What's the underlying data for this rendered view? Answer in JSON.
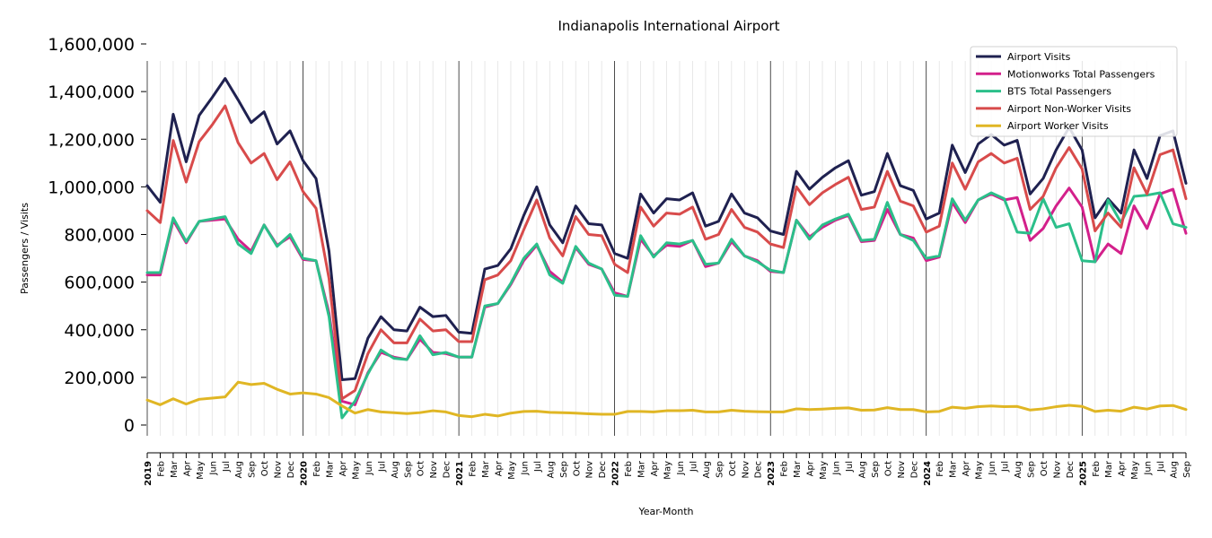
{
  "chart_data": {
    "type": "line",
    "title": "Indianapolis International Airport",
    "xlabel": "Year-Month",
    "ylabel": "Passengers / Visits",
    "ylim": [
      -40000,
      1600000
    ],
    "yticks": [
      0,
      200000,
      400000,
      600000,
      800000,
      1000000,
      1200000,
      1400000,
      1600000
    ],
    "ytick_labels": [
      "0",
      "200,000",
      "400,000",
      "600,000",
      "800,000",
      "1,000,000",
      "1,200,000",
      "1,400,000",
      "1,600,000"
    ],
    "legend_position": "top-right",
    "grid": "vertical monthly lines, darker year boundary lines",
    "x": [
      "2019",
      "Feb",
      "Mar",
      "Apr",
      "May",
      "Jun",
      "Jul",
      "Aug",
      "Sep",
      "Oct",
      "Nov",
      "Dec",
      "2020",
      "Feb",
      "Mar",
      "Apr",
      "May",
      "Jun",
      "Jul",
      "Aug",
      "Sep",
      "Oct",
      "Nov",
      "Dec",
      "2021",
      "Feb",
      "Mar",
      "Apr",
      "May",
      "Jun",
      "Jul",
      "Aug",
      "Sep",
      "Oct",
      "Nov",
      "Dec",
      "2022",
      "Feb",
      "Mar",
      "Apr",
      "May",
      "Jun",
      "Jul",
      "Aug",
      "Sep",
      "Oct",
      "Nov",
      "Dec",
      "2023",
      "Feb",
      "Mar",
      "Apr",
      "May",
      "Jun",
      "Jul",
      "Aug",
      "Sep",
      "Oct",
      "Nov",
      "Dec",
      "2024",
      "Feb",
      "Mar",
      "Apr",
      "May",
      "Jun",
      "Jul",
      "Aug",
      "Sep",
      "Oct",
      "Nov",
      "Dec",
      "2025",
      "Feb",
      "Mar",
      "Apr",
      "May",
      "Jun",
      "Jul",
      "Aug",
      "Sep"
    ],
    "year_labels": [
      "2019",
      "2020",
      "2021",
      "2022",
      "2023",
      "2024",
      "2025"
    ],
    "series": [
      {
        "name": "Airport Visits",
        "color": "#1f2150",
        "values": [
          1005000,
          935000,
          1305000,
          1105000,
          1300000,
          1375000,
          1455000,
          1365000,
          1270000,
          1315000,
          1180000,
          1235000,
          1110000,
          1035000,
          730000,
          190000,
          195000,
          365000,
          455000,
          400000,
          395000,
          495000,
          455000,
          460000,
          390000,
          385000,
          655000,
          670000,
          740000,
          880000,
          1000000,
          840000,
          765000,
          920000,
          845000,
          840000,
          720000,
          700000,
          970000,
          890000,
          950000,
          945000,
          975000,
          835000,
          855000,
          970000,
          890000,
          870000,
          815000,
          800000,
          1065000,
          990000,
          1040000,
          1080000,
          1110000,
          965000,
          980000,
          1140000,
          1005000,
          985000,
          865000,
          890000,
          1175000,
          1060000,
          1180000,
          1220000,
          1175000,
          1195000,
          970000,
          1035000,
          1155000,
          1250000,
          1155000,
          870000,
          950000,
          890000,
          1155000,
          1035000,
          1215000,
          1235000,
          1015000
        ]
      },
      {
        "name": "Motionworks Total Passengers",
        "color": "#d3208b",
        "values": [
          630000,
          630000,
          860000,
          765000,
          855000,
          860000,
          865000,
          780000,
          730000,
          840000,
          755000,
          790000,
          695000,
          690000,
          470000,
          100000,
          85000,
          220000,
          305000,
          285000,
          275000,
          360000,
          305000,
          300000,
          285000,
          285000,
          495000,
          510000,
          590000,
          690000,
          755000,
          645000,
          600000,
          745000,
          675000,
          655000,
          555000,
          540000,
          780000,
          710000,
          755000,
          750000,
          775000,
          665000,
          680000,
          770000,
          710000,
          690000,
          645000,
          640000,
          860000,
          790000,
          830000,
          860000,
          880000,
          770000,
          775000,
          905000,
          800000,
          785000,
          690000,
          705000,
          935000,
          850000,
          945000,
          970000,
          945000,
          955000,
          775000,
          825000,
          920000,
          995000,
          915000,
          685000,
          760000,
          720000,
          920000,
          825000,
          970000,
          990000,
          805000
        ]
      },
      {
        "name": "BTS Total Passengers",
        "color": "#2bbf8a",
        "values": [
          640000,
          640000,
          870000,
          770000,
          855000,
          865000,
          875000,
          760000,
          720000,
          840000,
          750000,
          800000,
          700000,
          690000,
          455000,
          30000,
          100000,
          215000,
          315000,
          280000,
          275000,
          375000,
          295000,
          305000,
          285000,
          285000,
          500000,
          510000,
          595000,
          700000,
          760000,
          630000,
          595000,
          750000,
          680000,
          655000,
          545000,
          540000,
          795000,
          705000,
          765000,
          760000,
          775000,
          675000,
          680000,
          780000,
          710000,
          685000,
          650000,
          640000,
          860000,
          780000,
          840000,
          865000,
          885000,
          775000,
          780000,
          935000,
          800000,
          775000,
          700000,
          710000,
          950000,
          860000,
          945000,
          975000,
          950000,
          810000,
          805000,
          950000,
          830000,
          845000,
          690000,
          685000,
          945000,
          850000,
          960000,
          965000,
          975000,
          845000,
          830000
        ]
      },
      {
        "name": "Airport Non-Worker Visits",
        "color": "#d84b4b",
        "values": [
          900000,
          850000,
          1195000,
          1020000,
          1190000,
          1260000,
          1340000,
          1185000,
          1100000,
          1140000,
          1030000,
          1105000,
          980000,
          910000,
          615000,
          110000,
          145000,
          300000,
          400000,
          345000,
          345000,
          445000,
          395000,
          400000,
          350000,
          350000,
          610000,
          630000,
          690000,
          820000,
          945000,
          785000,
          710000,
          875000,
          800000,
          795000,
          675000,
          640000,
          915000,
          835000,
          890000,
          885000,
          915000,
          780000,
          800000,
          905000,
          830000,
          810000,
          760000,
          745000,
          1000000,
          925000,
          975000,
          1010000,
          1040000,
          905000,
          915000,
          1065000,
          940000,
          920000,
          810000,
          835000,
          1100000,
          990000,
          1105000,
          1140000,
          1100000,
          1120000,
          905000,
          960000,
          1080000,
          1165000,
          1075000,
          815000,
          890000,
          830000,
          1080000,
          970000,
          1135000,
          1155000,
          950000
        ]
      },
      {
        "name": "Airport Worker Visits",
        "color": "#e0b624",
        "values": [
          105000,
          85000,
          110000,
          88000,
          108000,
          113000,
          118000,
          180000,
          170000,
          175000,
          150000,
          130000,
          135000,
          130000,
          115000,
          80000,
          50000,
          65000,
          55000,
          52000,
          48000,
          52000,
          60000,
          55000,
          40000,
          35000,
          45000,
          38000,
          50000,
          57000,
          58000,
          53000,
          52000,
          50000,
          47000,
          45000,
          45000,
          57000,
          57000,
          55000,
          60000,
          60000,
          62000,
          55000,
          55000,
          62000,
          58000,
          56000,
          55000,
          55000,
          68000,
          65000,
          67000,
          70000,
          72000,
          62000,
          63000,
          73000,
          65000,
          65000,
          55000,
          57000,
          75000,
          70000,
          77000,
          80000,
          77000,
          78000,
          63000,
          68000,
          77000,
          83000,
          78000,
          57000,
          62000,
          58000,
          75000,
          67000,
          80000,
          82000,
          65000
        ]
      }
    ]
  }
}
